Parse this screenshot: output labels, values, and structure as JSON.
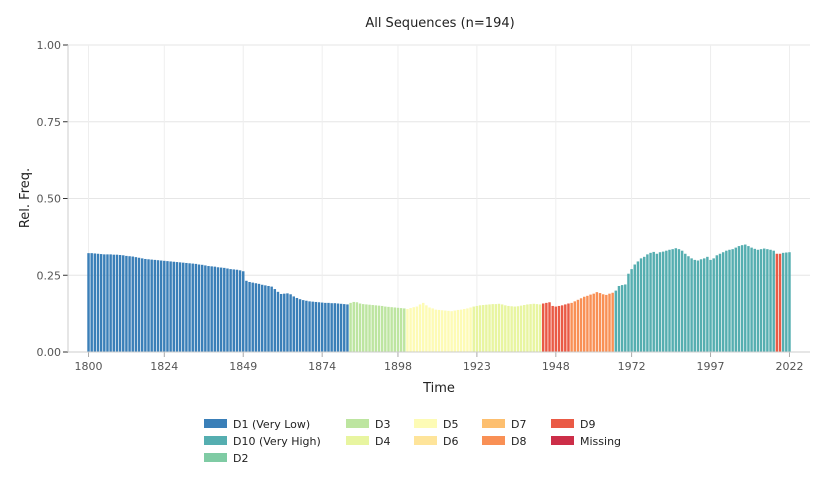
{
  "chart_data": {
    "type": "bar",
    "title": "All Sequences (n=194)",
    "xlabel": "Time",
    "ylabel": "Rel. Freq.",
    "ylim": [
      0,
      1
    ],
    "xlim": [
      1800,
      2022
    ],
    "y_ticks": [
      "0.00",
      "0.25",
      "0.50",
      "0.75",
      "1.00"
    ],
    "y_tick_values": [
      0,
      0.25,
      0.5,
      0.75,
      1
    ],
    "x_ticks": [
      "1800",
      "1824",
      "1849",
      "1874",
      "1898",
      "1923",
      "1948",
      "1972",
      "1997",
      "2022"
    ],
    "x_tick_values": [
      1800,
      1824,
      1849,
      1874,
      1898,
      1923,
      1948,
      1972,
      1997,
      2022
    ],
    "grid": true,
    "legend_position": "bottom",
    "legend": [
      {
        "label": "D1 (Very Low)",
        "color": "#3a7fb8"
      },
      {
        "label": "D10 (Very High)",
        "color": "#55aeb0"
      },
      {
        "label": "D2",
        "color": "#7fcba4"
      },
      {
        "label": "D3",
        "color": "#bde5a0"
      },
      {
        "label": "D4",
        "color": "#e8f5a0"
      },
      {
        "label": "D5",
        "color": "#fdfbb5"
      },
      {
        "label": "D6",
        "color": "#fee49a"
      },
      {
        "label": "D7",
        "color": "#fdbf6f"
      },
      {
        "label": "D8",
        "color": "#f99055"
      },
      {
        "label": "D9",
        "color": "#ea5a45"
      },
      {
        "label": "Missing",
        "color": "#cc2e48"
      }
    ],
    "series_segments": [
      {
        "x": [
          1800,
          1801,
          1802,
          1803,
          1804,
          1805,
          1806,
          1807,
          1808,
          1809,
          1810,
          1811,
          1812,
          1813,
          1814,
          1815,
          1816,
          1817,
          1818,
          1819,
          1820,
          1821,
          1822,
          1823,
          1824,
          1825,
          1826,
          1827,
          1828,
          1829,
          1830,
          1831,
          1832,
          1833,
          1834,
          1835,
          1836,
          1837,
          1838,
          1839,
          1840,
          1841,
          1842,
          1843,
          1844,
          1845,
          1846,
          1847,
          1848,
          1849,
          1850,
          1851,
          1852,
          1853,
          1854,
          1855,
          1856,
          1857,
          1858,
          1859,
          1860,
          1861,
          1862,
          1863,
          1864,
          1865,
          1866,
          1867,
          1868,
          1869,
          1870,
          1871,
          1872,
          1873,
          1874,
          1875,
          1876,
          1877,
          1878,
          1879,
          1880,
          1881,
          1882
        ],
        "y": [
          0.322,
          0.322,
          0.321,
          0.32,
          0.319,
          0.318,
          0.318,
          0.318,
          0.317,
          0.317,
          0.316,
          0.315,
          0.313,
          0.312,
          0.311,
          0.309,
          0.307,
          0.305,
          0.303,
          0.302,
          0.301,
          0.3,
          0.299,
          0.298,
          0.297,
          0.296,
          0.295,
          0.294,
          0.293,
          0.292,
          0.291,
          0.29,
          0.289,
          0.288,
          0.287,
          0.285,
          0.284,
          0.282,
          0.28,
          0.279,
          0.278,
          0.276,
          0.275,
          0.274,
          0.272,
          0.27,
          0.269,
          0.268,
          0.266,
          0.263,
          0.232,
          0.228,
          0.226,
          0.224,
          0.222,
          0.219,
          0.217,
          0.215,
          0.213,
          0.205,
          0.196,
          0.189,
          0.19,
          0.191,
          0.188,
          0.181,
          0.176,
          0.172,
          0.169,
          0.167,
          0.165,
          0.164,
          0.163,
          0.162,
          0.161,
          0.16,
          0.16,
          0.159,
          0.159,
          0.158,
          0.157,
          0.156,
          0.155
        ],
        "color": "#3a7fb8"
      },
      {
        "x": [
          1883,
          1884,
          1885,
          1886,
          1887,
          1888,
          1889,
          1890,
          1891,
          1892,
          1893,
          1894,
          1895,
          1896,
          1897,
          1898,
          1899,
          1900
        ],
        "y": [
          0.16,
          0.163,
          0.162,
          0.158,
          0.156,
          0.155,
          0.154,
          0.153,
          0.152,
          0.151,
          0.15,
          0.148,
          0.147,
          0.146,
          0.145,
          0.144,
          0.143,
          0.142
        ],
        "color": "#bde5a0"
      },
      {
        "x": [
          1901,
          1902,
          1903,
          1904,
          1905,
          1906,
          1907,
          1908,
          1909,
          1910,
          1911,
          1912,
          1913,
          1914,
          1915,
          1916,
          1917,
          1918,
          1919,
          1920,
          1921
        ],
        "y": [
          0.14,
          0.143,
          0.146,
          0.148,
          0.155,
          0.16,
          0.152,
          0.145,
          0.142,
          0.138,
          0.137,
          0.136,
          0.135,
          0.134,
          0.133,
          0.135,
          0.137,
          0.138,
          0.14,
          0.142,
          0.145
        ],
        "color": "#fdfbb5"
      },
      {
        "x": [
          1922,
          1923,
          1924,
          1925,
          1926,
          1927,
          1928,
          1929,
          1930,
          1931,
          1932,
          1933,
          1934,
          1935,
          1936,
          1937,
          1938,
          1939,
          1940,
          1941,
          1942,
          1943
        ],
        "y": [
          0.148,
          0.15,
          0.152,
          0.153,
          0.154,
          0.155,
          0.156,
          0.156,
          0.157,
          0.155,
          0.152,
          0.15,
          0.149,
          0.148,
          0.149,
          0.151,
          0.153,
          0.155,
          0.156,
          0.157,
          0.156,
          0.155
        ],
        "color": "#e8f5a0"
      },
      {
        "x": [
          1944,
          1945,
          1946,
          1947,
          1948,
          1949,
          1950,
          1951,
          1952
        ],
        "y": [
          0.158,
          0.16,
          0.162,
          0.15,
          0.148,
          0.15,
          0.152,
          0.155,
          0.158
        ],
        "color": "#ea5a45"
      },
      {
        "x": [
          1953,
          1954,
          1955,
          1956,
          1957,
          1958,
          1959,
          1960,
          1961,
          1962,
          1963,
          1964,
          1965,
          1966
        ],
        "y": [
          0.16,
          0.165,
          0.17,
          0.175,
          0.18,
          0.183,
          0.187,
          0.19,
          0.195,
          0.192,
          0.188,
          0.186,
          0.19,
          0.193
        ],
        "color": "#f99055"
      },
      {
        "x": [
          1967,
          1968,
          1969,
          1970,
          1971,
          1972,
          1973,
          1974,
          1975,
          1976,
          1977,
          1978,
          1979,
          1980,
          1981,
          1982,
          1983,
          1984,
          1985,
          1986,
          1987,
          1988,
          1989,
          1990,
          1991,
          1992,
          1993,
          1994,
          1995,
          1996,
          1997,
          1998,
          1999,
          2000,
          2001,
          2002,
          2003,
          2004,
          2005,
          2006,
          2007,
          2008,
          2009,
          2010,
          2011,
          2012,
          2013,
          2014,
          2015,
          2016,
          2017
        ],
        "y": [
          0.2,
          0.215,
          0.218,
          0.22,
          0.255,
          0.27,
          0.285,
          0.295,
          0.305,
          0.31,
          0.318,
          0.323,
          0.326,
          0.32,
          0.325,
          0.327,
          0.33,
          0.333,
          0.335,
          0.338,
          0.335,
          0.33,
          0.32,
          0.312,
          0.305,
          0.3,
          0.298,
          0.302,
          0.305,
          0.31,
          0.3,
          0.305,
          0.315,
          0.32,
          0.325,
          0.33,
          0.333,
          0.335,
          0.34,
          0.345,
          0.348,
          0.35,
          0.345,
          0.34,
          0.336,
          0.333,
          0.335,
          0.337,
          0.335,
          0.333,
          0.33
        ],
        "color": "#55aeb0"
      },
      {
        "x": [
          2018,
          2019
        ],
        "y": [
          0.32,
          0.32
        ],
        "color": "#ea5a45"
      },
      {
        "x": [
          2020,
          2021,
          2022
        ],
        "y": [
          0.323,
          0.324,
          0.325
        ],
        "color": "#55aeb0"
      }
    ]
  }
}
